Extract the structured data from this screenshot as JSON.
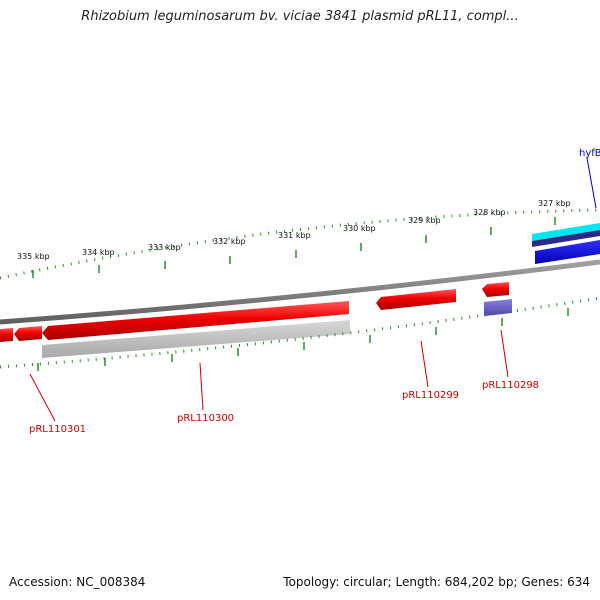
{
  "title": "Rhizobium leguminosarum bv. viciae 3841 plasmid pRL11, compl...",
  "accession_text": "Accession: NC_008384",
  "stats_text": "Topology: circular; Length: 684,202 bp; Genes: 634",
  "ruler": {
    "labels": [
      "327 kbp",
      "328 kbp",
      "329 kbp",
      "330 kbp",
      "331 kbp",
      "332 kbp",
      "333 kbp",
      "334 kbp",
      "335 kbp"
    ]
  },
  "genes": [
    {
      "id": "pRL110301",
      "label": "pRL110301",
      "color": "#cc0000"
    },
    {
      "id": "pRL110300",
      "label": "pRL110300",
      "color": "#cc0000"
    },
    {
      "id": "pRL110299",
      "label": "pRL110299",
      "color": "#cc0000"
    },
    {
      "id": "pRL110298",
      "label": "pRL110298",
      "color": "#cc0000"
    },
    {
      "id": "hyfB",
      "label": "hyfB",
      "color": "#0000cc"
    }
  ],
  "colors": {
    "forward_gene": "#ee1111",
    "reverse_gene": "#bbbbbb",
    "backbone": "#808080",
    "tick": "#2e8b2e",
    "cyan_feature": "#00e5ee",
    "blue_feature": "#0000ee",
    "purple_feature": "#6a5acd"
  }
}
